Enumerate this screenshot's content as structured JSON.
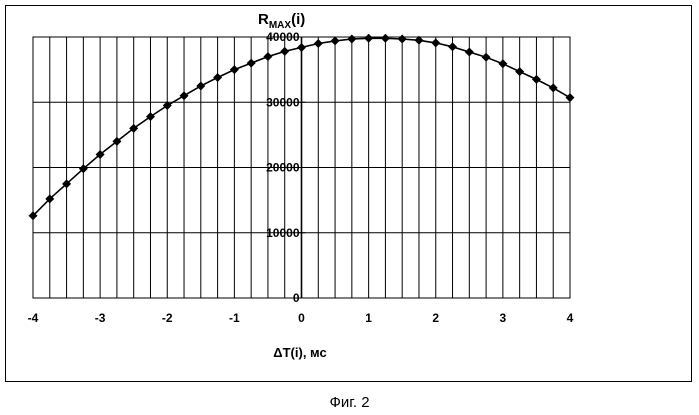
{
  "chart_data": {
    "type": "line",
    "title": "R",
    "title_sub": "MAX",
    "title_suffix": "(i)",
    "xlabel": "ΔT(i),  мс",
    "xlim": [
      -4,
      4
    ],
    "ylim": [
      0,
      40000
    ],
    "x_ticks": [
      -4,
      -3,
      -2,
      -1,
      0,
      1,
      2,
      3,
      4
    ],
    "y_ticks": [
      0,
      10000,
      20000,
      30000,
      40000
    ],
    "x_tick_labels": [
      "-4",
      "-3",
      "-2",
      "-1",
      "0",
      "1",
      "2",
      "3",
      "4"
    ],
    "y_tick_labels": [
      "0",
      "10000",
      "20000",
      "30000",
      "40000"
    ],
    "grid": true,
    "marker": "diamond",
    "series": [
      {
        "x": [
          -4,
          -3.75,
          -3.5,
          -3.25,
          -3,
          -2.75,
          -2.5,
          -2.25,
          -2,
          -1.75,
          -1.5,
          -1.25,
          -1,
          -0.75,
          -0.5,
          -0.25,
          0,
          0.25,
          0.5,
          0.75,
          1,
          1.25,
          1.5,
          1.75,
          2,
          2.25,
          2.5,
          2.75,
          3,
          3.25,
          3.5,
          3.75,
          4
        ],
        "values": [
          12600,
          15200,
          17500,
          19800,
          22000,
          24000,
          26000,
          27800,
          29500,
          31000,
          32500,
          33800,
          35000,
          36000,
          37000,
          37800,
          38400,
          39000,
          39400,
          39700,
          39800,
          39800,
          39700,
          39500,
          39100,
          38500,
          37700,
          36900,
          35900,
          34700,
          33500,
          32200,
          30700
        ]
      }
    ]
  },
  "caption": "Фиг. 2"
}
